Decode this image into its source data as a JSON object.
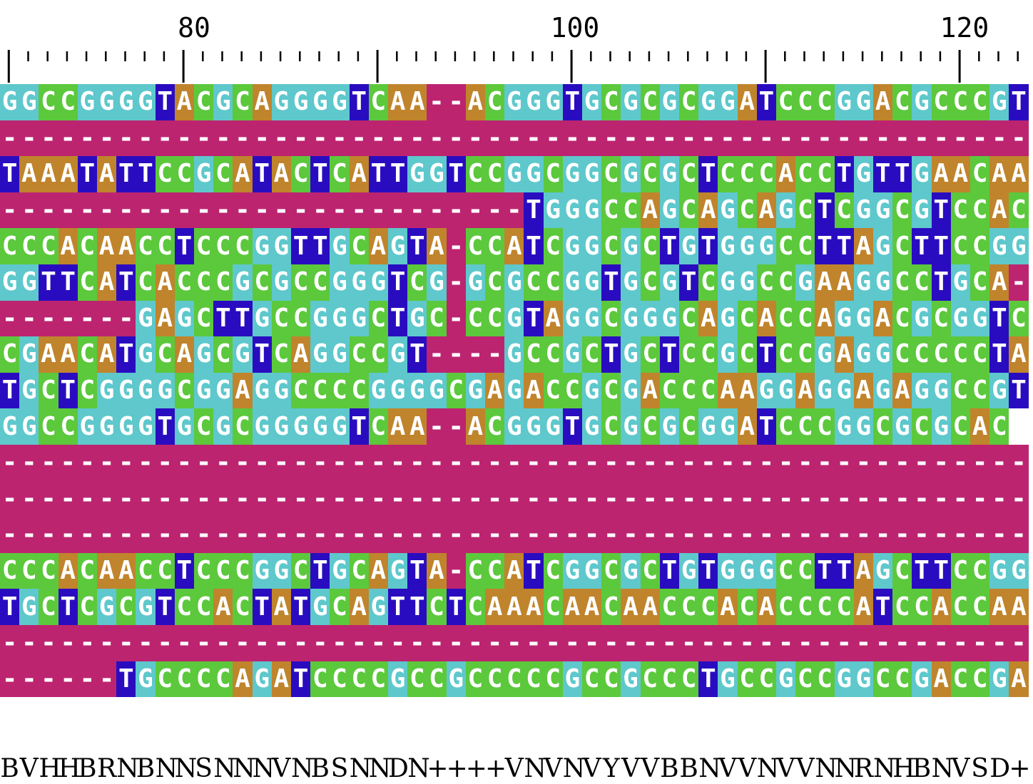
{
  "ruler": {
    "first_position": 71,
    "labels": [
      "80",
      "100",
      "120"
    ]
  },
  "colors": {
    "A": "#c0842c",
    "C": "#5cc83c",
    "G": "#5ec8cc",
    "T": "#2a0cc0",
    "-": "#bc2470",
    "text": "#ffffff"
  },
  "alignment": [
    "GGCCGGGGTACGCAGGGGTCAA--ACGGGTGCGCGCGGATCCCGGACGCCCGT",
    "-----------------------------------------------------",
    "TAAATATTCCGCATACTCATTGGTCCGGCGGCGCGCTCCCACCTGTTGAACAA",
    "---------------------------TGGGCCAGCAGCAGCTCGGCGTCCAC",
    "CCCACAACCTCCCGGTTGCAGTA-CCATCGGCGCTGTGGGCCTTAGCTTCCGG",
    "GGTTCATCACCCGCGCCGGGTCG-GCGCCGGTGCGTCGGCCGAAGGCCTGCA-",
    "-------GAGCTTGCCGGGCTGC-CCGTAGGCGGGCAGCACCAGGACGCGGTC",
    "CGAACATGCAGCGTCAGGCCGT----GCCGCTGCTCCGCTCCGAGGCCCCCTA",
    "TGCTCGGGGCGGAGGCCCCGGGGCGAGACCGCGACCCAAGGAGGAGAGGCCGT",
    "GGCCGGGGTGCGCGGGGGTCAA--ACGGGTGCGCGCGGATCCCGGCGCGCAC",
    "-----------------------------------------------------",
    "-----------------------------------------------------",
    "-----------------------------------------------------",
    "CCCACAACCTCCCGGCTGCAGTA-CCATCGGCGCTGTGGGCCTTAGCTTCCGG",
    "TGCTCGCGTCCACTATGCAGTTCTCAAACAACAACCCACACCCCATCCACCAA",
    "-----------------------------------------------------",
    "------TGCCCCAGATCCCCGCCGCCCCCGCCGCCCTGCCGCCGGCCGACCGA"
  ],
  "consensus": "BVHHBRNBNNSNNNVNBSNNDN++++VNVNVYVVBBNVVNVVNNRNHBNVSD+"
}
